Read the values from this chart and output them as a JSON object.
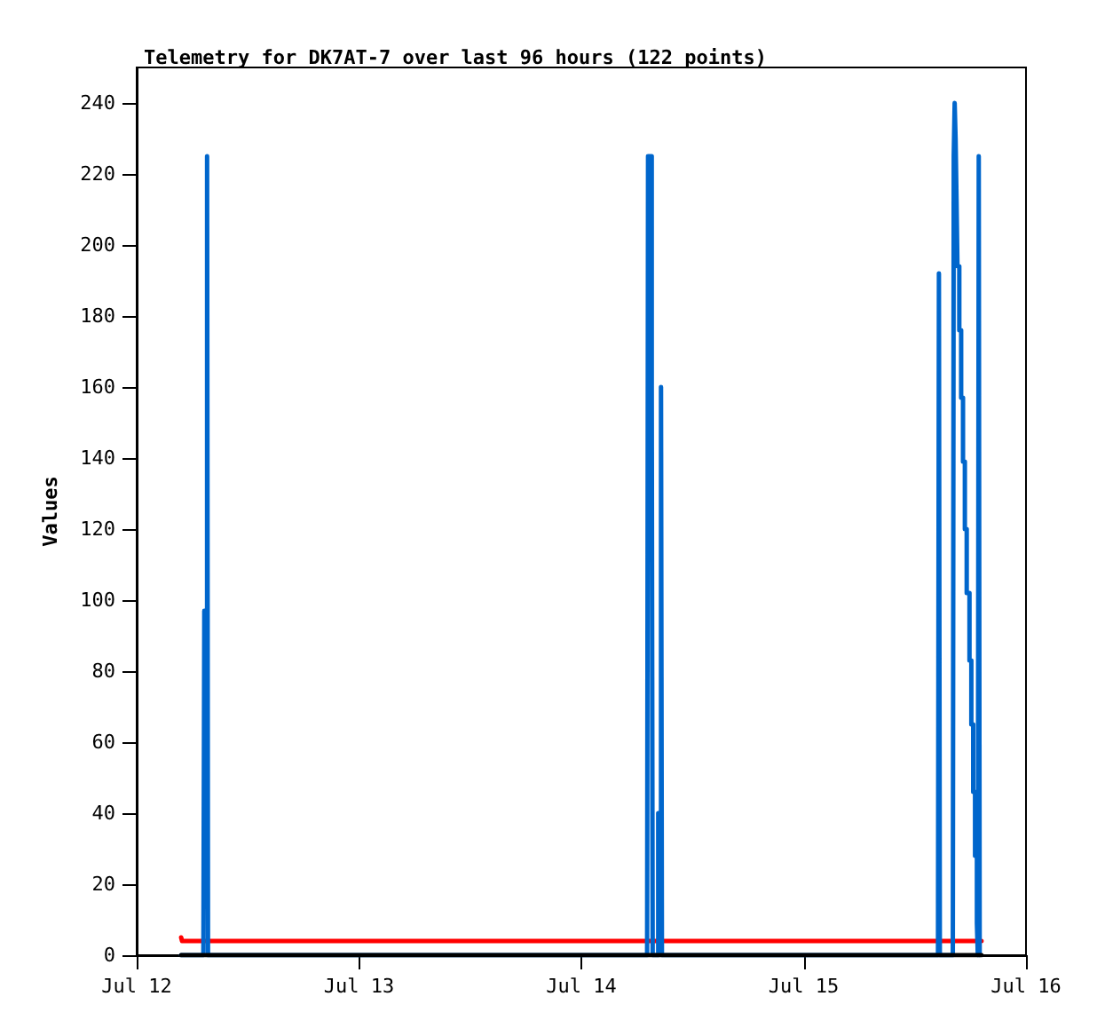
{
  "chart_data": {
    "type": "step",
    "title": "Telemetry for DK7AT-7 over last 96 hours (122 points)",
    "ylabel": "Values",
    "xlim": [
      "--07-12",
      "--07-16"
    ],
    "xticks": [
      {
        "value": "--07-12",
        "label": "Jul 12"
      },
      {
        "value": "--07-13",
        "label": "Jul 13"
      },
      {
        "value": "--07-14",
        "label": "Jul 14"
      },
      {
        "value": "--07-15",
        "label": "Jul 15"
      },
      {
        "value": "--07-16",
        "label": "Jul 16"
      }
    ],
    "ylim": [
      0,
      250
    ],
    "yticks": [
      0,
      20,
      40,
      60,
      80,
      100,
      120,
      140,
      160,
      180,
      200,
      220,
      240
    ],
    "grid": false,
    "marker": "none",
    "line_style": "solid",
    "series": [
      {
        "color": "#ff0000",
        "x": [
          "--07-12T04:48",
          "--07-12T04:54",
          "--07-15T19:12"
        ],
        "values": [
          5,
          4,
          4
        ]
      },
      {
        "color": "#0066cc",
        "x": [
          "--07-12T04:48",
          "--07-12T07:12",
          "--07-12T07:18",
          "--07-12T07:36",
          "--07-12T07:42",
          "--07-14T07:06",
          "--07-14T07:12",
          "--07-14T07:36",
          "--07-14T07:42",
          "--07-14T08:18",
          "--07-14T08:36",
          "--07-14T08:42",
          "--07-15T14:30",
          "--07-15T14:36",
          "--07-15T14:42",
          "--07-15T16:06",
          "--07-15T16:12",
          "--07-15T16:18",
          "--07-15T16:24",
          "--07-15T16:30",
          "--07-15T16:36",
          "--07-15T16:48",
          "--07-15T17:00",
          "--07-15T17:12",
          "--07-15T17:24",
          "--07-15T17:36",
          "--07-15T17:54",
          "--07-15T18:06",
          "--07-15T18:18",
          "--07-15T18:30",
          "--07-15T18:42",
          "--07-15T18:48",
          "--07-15T18:54",
          "--07-15T19:00"
        ],
        "values": [
          0,
          0,
          97,
          225,
          0,
          0,
          225,
          160,
          0,
          40,
          160,
          0,
          0,
          192,
          0,
          0,
          225,
          240,
          230,
          213,
          194,
          176,
          157,
          139,
          120,
          102,
          83,
          65,
          46,
          28,
          9,
          0,
          225,
          0
        ]
      },
      {
        "color": "#000000",
        "x": [
          "--07-12T04:48",
          "--07-15T19:12"
        ],
        "values": [
          0,
          0
        ]
      }
    ]
  }
}
